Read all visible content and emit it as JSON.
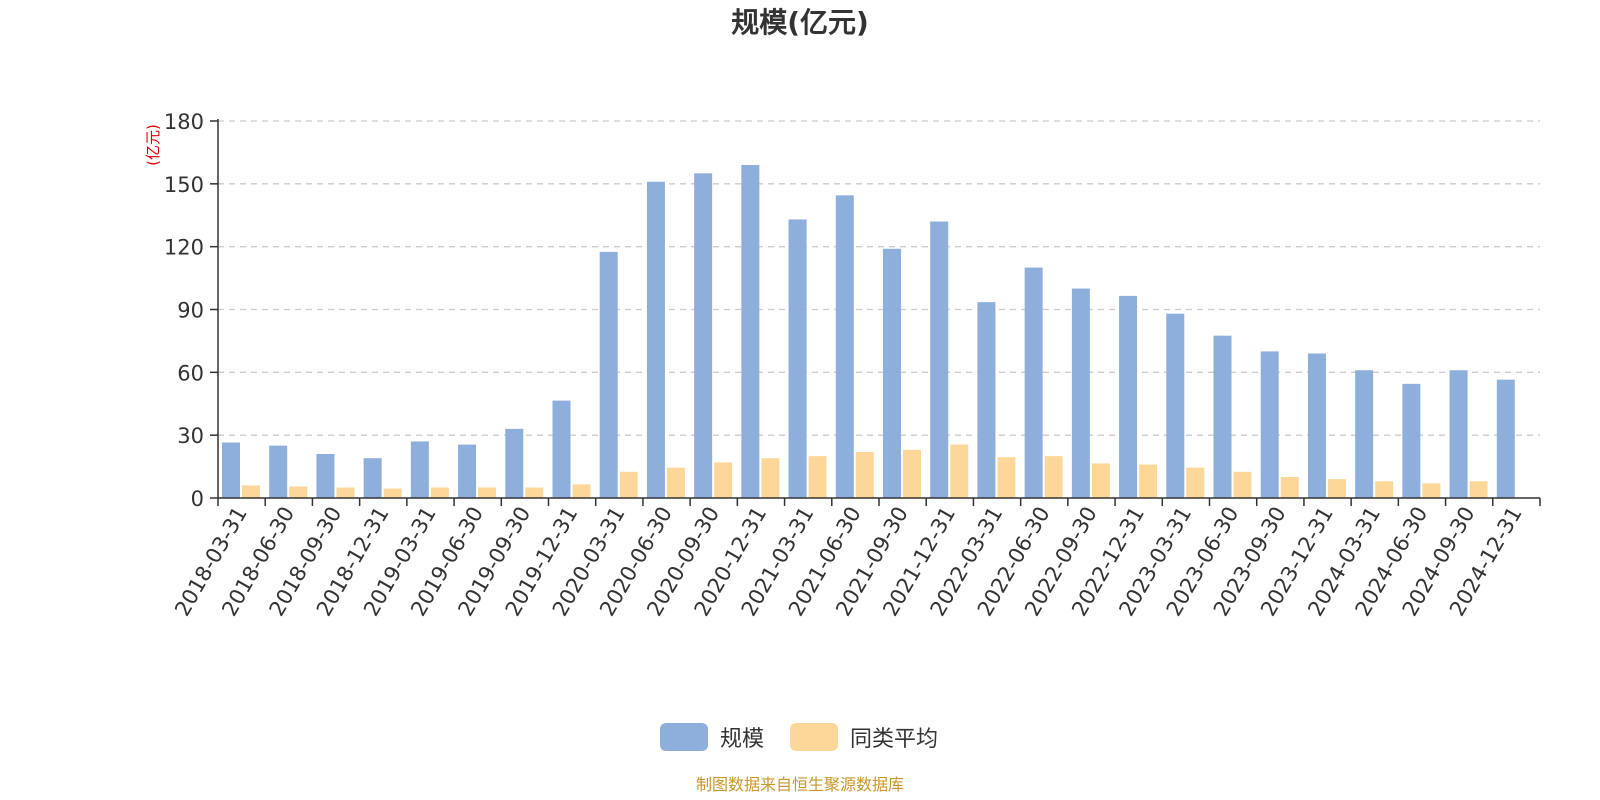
{
  "chart_data": {
    "type": "bar",
    "title": "规模(亿元)",
    "ylabel": "(亿元)",
    "xlabel": "",
    "ylim": [
      0,
      180
    ],
    "yticks": [
      0,
      30,
      60,
      90,
      120,
      150,
      180
    ],
    "grid": true,
    "legend_position": "bottom",
    "categories": [
      "2018-03-31",
      "2018-06-30",
      "2018-09-30",
      "2018-12-31",
      "2019-03-31",
      "2019-06-30",
      "2019-09-30",
      "2019-12-31",
      "2020-03-31",
      "2020-06-30",
      "2020-09-30",
      "2020-12-31",
      "2021-03-31",
      "2021-06-30",
      "2021-09-30",
      "2021-12-31",
      "2022-03-31",
      "2022-06-30",
      "2022-09-30",
      "2022-12-31",
      "2023-03-31",
      "2023-06-30",
      "2023-09-30",
      "2023-12-31",
      "2024-03-31",
      "2024-06-30",
      "2024-09-30",
      "2024-12-31"
    ],
    "series": [
      {
        "name": "规模",
        "color": "#8eaedc",
        "values": [
          26.5,
          25,
          21,
          19,
          27,
          25.5,
          33,
          46.5,
          117.5,
          151,
          155,
          159,
          133,
          144.5,
          119,
          132,
          93.5,
          110,
          100,
          96.5,
          88,
          77.5,
          70,
          69,
          61,
          54.5,
          61,
          56.5
        ]
      },
      {
        "name": "同类平均",
        "color": "#fdd79a",
        "values": [
          6,
          5.5,
          5,
          4.5,
          5,
          5,
          5,
          6.5,
          12.5,
          14.5,
          17,
          19,
          20,
          22,
          23,
          25.5,
          19.5,
          20,
          16.5,
          16,
          14.5,
          12.5,
          10,
          9,
          8,
          7,
          8,
          null
        ]
      }
    ]
  },
  "source": "制图数据来自恒生聚源数据库"
}
